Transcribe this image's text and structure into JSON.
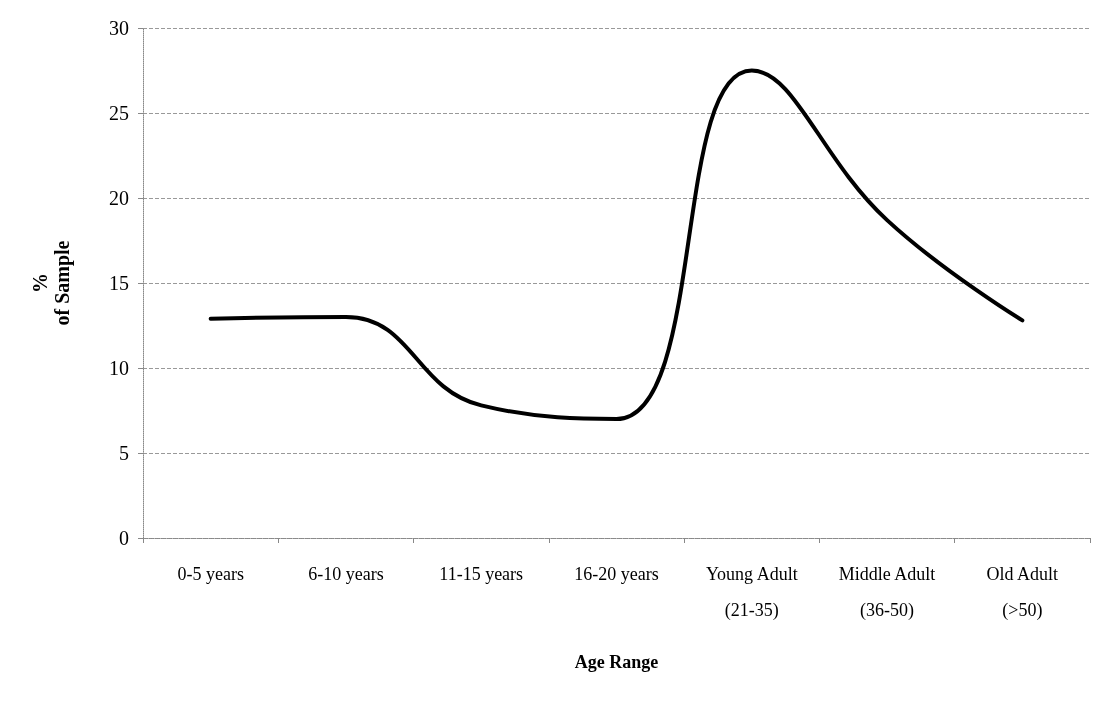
{
  "chart_data": {
    "type": "line",
    "xlabel": "Age Range",
    "ylabel": "%\nof Sample",
    "categories": [
      "0-5 years",
      "6-10 years",
      "11-15 years",
      "16-20 years",
      "Young Adult\n(21-35)",
      "Middle Adult\n(36-50)",
      "Old Adult\n(>50)"
    ],
    "series": [
      {
        "color": "#000000",
        "values": [
          12.9,
          13,
          7.8,
          7,
          27.5,
          18.7,
          12.8
        ]
      }
    ],
    "ylim": [
      0,
      30
    ],
    "yticks": [
      0,
      5,
      10,
      15,
      20,
      25,
      30
    ],
    "grid": "y",
    "marker": "none",
    "line_style": "solid"
  }
}
